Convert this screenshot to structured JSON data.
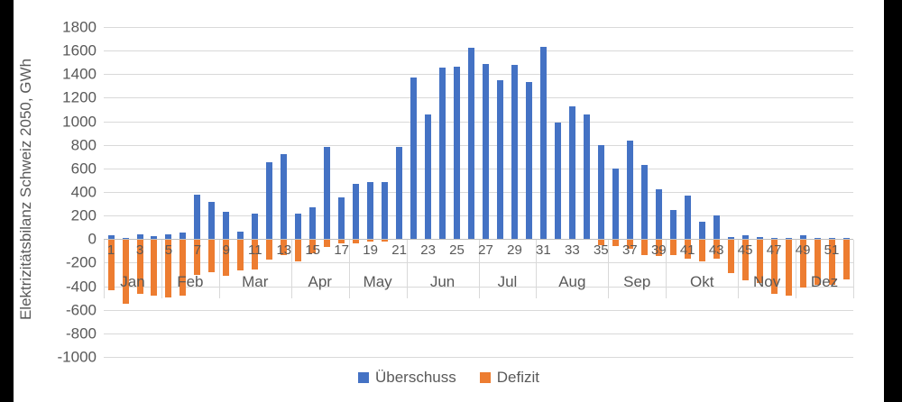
{
  "y_axis": {
    "title": "Elektrizitätsbilanz Schweiz 2050, GWh",
    "min": -1000,
    "max": 1800,
    "step": 200,
    "tick_labels": [
      "1800",
      "1600",
      "1400",
      "1200",
      "1000",
      "800",
      "600",
      "400",
      "200",
      "0",
      "-200",
      "-400",
      "-600",
      "-800",
      "-1000"
    ]
  },
  "legend": {
    "items": [
      {
        "label": "Überschuss",
        "color": "#4472C4"
      },
      {
        "label": "Defizit",
        "color": "#ED7D31"
      }
    ]
  },
  "colors": {
    "surplus": "#4472C4",
    "deficit": "#ED7D31",
    "gridline": "#d9d9d9",
    "axis_line": "#bfbfbf",
    "text": "#595959",
    "frame": "#000000",
    "panel": "#ffffff"
  },
  "chart_data": {
    "type": "bar",
    "title": "",
    "xlabel": "",
    "ylabel": "Elektrizitätsbilanz Schweiz 2050, GWh",
    "ylim": [
      -1000,
      1800
    ],
    "grid": "horizontal-200-steps",
    "legend_position": "bottom",
    "weeks": [
      1,
      2,
      3,
      4,
      5,
      6,
      7,
      8,
      9,
      10,
      11,
      12,
      13,
      14,
      15,
      16,
      17,
      18,
      19,
      20,
      21,
      22,
      23,
      24,
      25,
      26,
      27,
      28,
      29,
      30,
      31,
      32,
      33,
      34,
      35,
      36,
      37,
      38,
      39,
      40,
      41,
      42,
      43,
      44,
      45,
      46,
      47,
      48,
      49,
      50,
      51,
      52
    ],
    "x_tick_labels": [
      "1",
      "3",
      "5",
      "7",
      "9",
      "11",
      "13",
      "15",
      "17",
      "19",
      "21",
      "23",
      "25",
      "27",
      "29",
      "31",
      "33",
      "35",
      "37",
      "39",
      "41",
      "43",
      "45",
      "47",
      "49",
      "51"
    ],
    "month_groups": [
      {
        "label": "Jan",
        "weeks": 4
      },
      {
        "label": "Feb",
        "weeks": 4
      },
      {
        "label": "Mar",
        "weeks": 5
      },
      {
        "label": "Apr",
        "weeks": 4
      },
      {
        "label": "May",
        "weeks": 4
      },
      {
        "label": "Jun",
        "weeks": 5
      },
      {
        "label": "Jul",
        "weeks": 4
      },
      {
        "label": "Aug",
        "weeks": 5
      },
      {
        "label": "Sep",
        "weeks": 4
      },
      {
        "label": "Okt",
        "weeks": 5
      },
      {
        "label": "Nov",
        "weeks": 4
      },
      {
        "label": "Dez",
        "weeks": 4
      }
    ],
    "series": [
      {
        "name": "Überschuss",
        "color": "#4472C4",
        "values": [
          30,
          10,
          40,
          25,
          40,
          55,
          375,
          320,
          230,
          60,
          220,
          650,
          720,
          220,
          270,
          785,
          355,
          470,
          485,
          485,
          780,
          1370,
          1060,
          1455,
          1465,
          1625,
          1490,
          1350,
          1480,
          1330,
          1630,
          990,
          1130,
          1060,
          795,
          600,
          840,
          630,
          420,
          250,
          370,
          150,
          200,
          20,
          35,
          20,
          10,
          5,
          30,
          10,
          10,
          10
        ]
      },
      {
        "name": "Defizit",
        "color": "#ED7D31",
        "values": [
          -430,
          -545,
          -455,
          -475,
          -490,
          -475,
          -300,
          -275,
          -305,
          -260,
          -250,
          -165,
          -125,
          -185,
          -110,
          -60,
          -25,
          -25,
          -15,
          -15,
          0,
          0,
          0,
          0,
          0,
          0,
          0,
          0,
          0,
          0,
          0,
          0,
          0,
          0,
          -45,
          -55,
          -75,
          -125,
          -135,
          -130,
          -155,
          -180,
          -155,
          -280,
          -345,
          -365,
          -460,
          -470,
          -400,
          -380,
          -380,
          -335
        ]
      }
    ]
  }
}
